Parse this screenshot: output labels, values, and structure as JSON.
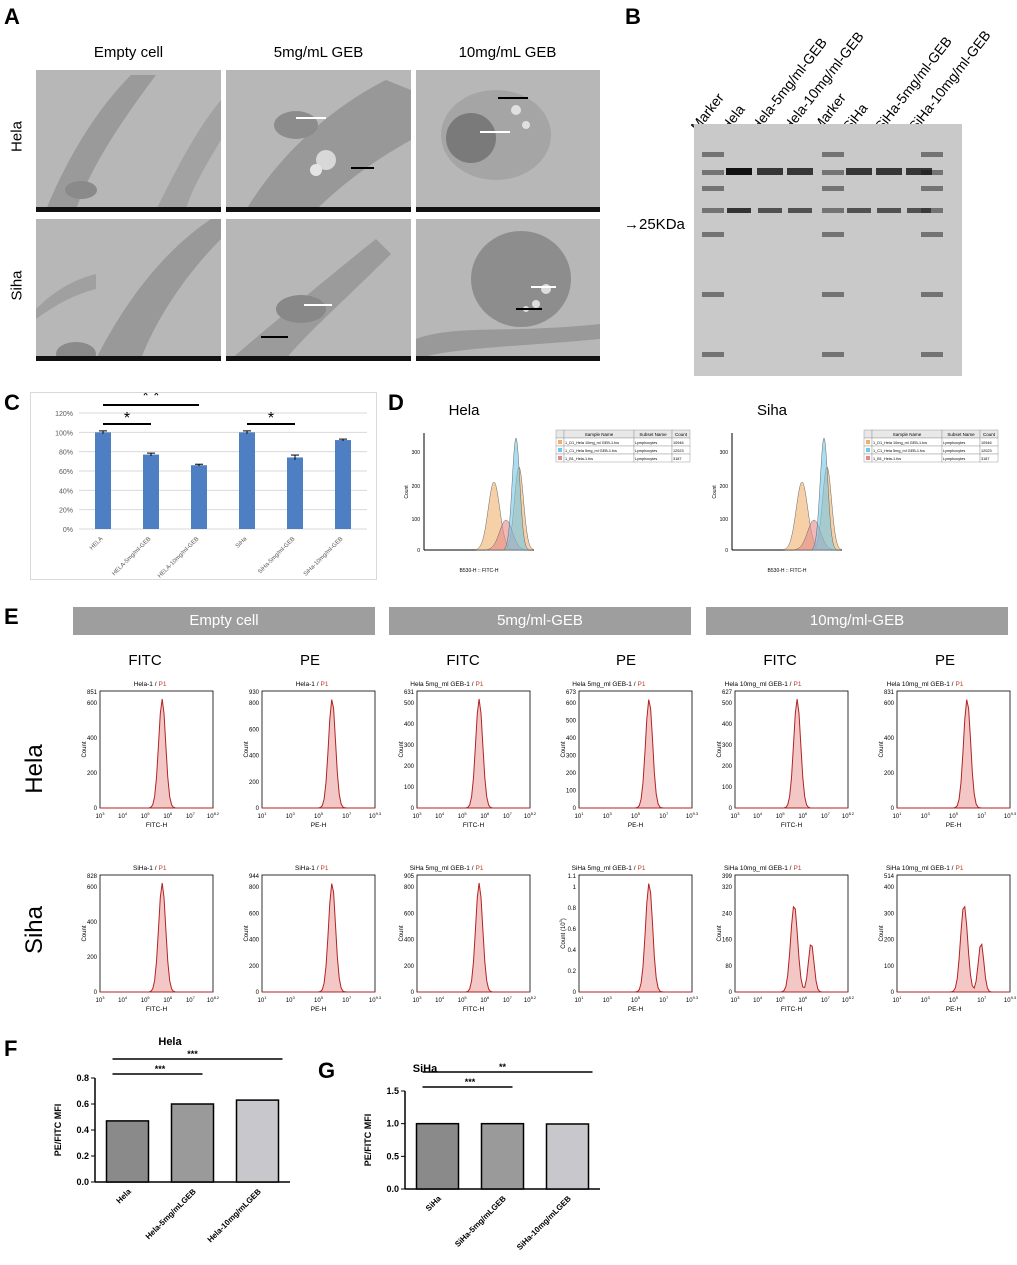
{
  "panel_letters": {
    "a": "A",
    "b": "B",
    "c": "C",
    "d": "D",
    "e": "E",
    "f": "F",
    "g": "G"
  },
  "panelA": {
    "columns": [
      "Empty cell",
      "5mg/mL GEB",
      "10mg/mL GEB"
    ],
    "rows": [
      "Hela",
      "Siha"
    ]
  },
  "panelB": {
    "lanes": [
      "Marker",
      "Hela",
      "Hela-5mg/ml-GEB",
      "Hela-10mg/ml-GEB",
      "Marker",
      "SiHa",
      "SiHa-5mg/ml-GEB",
      "SiHa-10mg/ml-GEB"
    ],
    "arrow_label": "→25KDa"
  },
  "panelD": {
    "titles": [
      "Hela",
      "Siha"
    ],
    "xlabel": "B530-H :: FITC-H",
    "ylabel": "Count",
    "legend_headers": [
      "",
      "Sample Name",
      "Subset Name",
      "Count"
    ],
    "legend_rows": [
      {
        "name": "1_D1_Hela 10mg_ml GEB-1.fcs",
        "subset": "Lymphocytes",
        "count": "10946",
        "color": "#f0b06a"
      },
      {
        "name": "1_C1_Hela 5mg_ml GEB-1.fcs",
        "subset": "Lymphocytes",
        "count": "12023",
        "color": "#73c6e8"
      },
      {
        "name": "1_B1_Hela-1.fcs",
        "subset": "Lymphocytes",
        "count": "3187",
        "color": "#e58a8a"
      }
    ]
  },
  "panelE": {
    "groups": [
      "Empty cell",
      "5mg/ml-GEB",
      "10mg/ml-GEB"
    ],
    "channels": [
      "FITC",
      "PE"
    ],
    "rows": [
      "Hela",
      "Siha"
    ],
    "gate": "P1",
    "ylabel": "Count",
    "ylabel_scaled": "Count (10",
    "ylabel_exp": "3",
    "fitc_xlabel": "FITC-H",
    "pe_xlabel": "PE-H",
    "plots": [
      {
        "title": "Hela-1",
        "ymax": "851",
        "yticks": [
          "600",
          "400",
          "200",
          "0"
        ],
        "channel": "FITC"
      },
      {
        "title": "Hela-1",
        "ymax": "930",
        "yticks": [
          "800",
          "600",
          "400",
          "200",
          "0"
        ],
        "channel": "PE"
      },
      {
        "title": "Hela 5mg_ml GEB-1",
        "ymax": "631",
        "yticks": [
          "500",
          "400",
          "300",
          "200",
          "100",
          "0"
        ],
        "channel": "FITC"
      },
      {
        "title": "Hela 5mg_ml GEB-1",
        "ymax": "673",
        "yticks": [
          "600",
          "500",
          "400",
          "300",
          "200",
          "100",
          "0"
        ],
        "channel": "PE"
      },
      {
        "title": "Hela 10mg_ml GEB-1",
        "ymax": "627",
        "yticks": [
          "500",
          "400",
          "300",
          "200",
          "100",
          "0"
        ],
        "channel": "FITC"
      },
      {
        "title": "Hela 10mg_ml GEB-1",
        "ymax": "831",
        "yticks": [
          "600",
          "400",
          "200",
          "0"
        ],
        "channel": "PE"
      },
      {
        "title": "SiHa-1",
        "ymax": "828",
        "yticks": [
          "600",
          "400",
          "200",
          "0"
        ],
        "channel": "FITC"
      },
      {
        "title": "SiHa-1",
        "ymax": "944",
        "yticks": [
          "800",
          "600",
          "400",
          "200",
          "0"
        ],
        "channel": "PE"
      },
      {
        "title": "SiHa 5mg_ml GEB-1",
        "ymax": "905",
        "yticks": [
          "800",
          "600",
          "400",
          "200",
          "0"
        ],
        "channel": "FITC"
      },
      {
        "title": "SiHa 5mg_ml GEB-1",
        "ymax": "1.1",
        "yticks": [
          "1",
          "0.8",
          "0.6",
          "0.4",
          "0.2",
          "0"
        ],
        "channel": "PE"
      },
      {
        "title": "SiHa 10mg_ml GEB-1",
        "ymax": "399",
        "yticks": [
          "320",
          "240",
          "160",
          "80",
          "0"
        ],
        "channel": "FITC"
      },
      {
        "title": "SiHa 10mg_ml GEB-1",
        "ymax": "514",
        "yticks": [
          "400",
          "300",
          "200",
          "100",
          "0"
        ],
        "channel": "PE"
      }
    ],
    "xticks_fitc": [
      "10",
      "3",
      "10",
      "4",
      "10",
      "5",
      "10",
      "6",
      "10",
      "7",
      "10",
      "8.2"
    ],
    "xticks_pe": [
      "10",
      "1",
      "10",
      "3",
      "10",
      "5",
      "10",
      "7",
      "10",
      "9.3"
    ]
  },
  "chart_data": [
    {
      "panel": "C",
      "type": "bar",
      "categories": [
        "HELA",
        "HELA-5mg/ml-GEB",
        "HELA-10mg/ml-GEB",
        "SiHa",
        "SiHa-5mg/ml-GEB",
        "SiHa-10mg/ml-GEB"
      ],
      "values": [
        100,
        77,
        66,
        100,
        74,
        92
      ],
      "errors": [
        1.5,
        1.5,
        1,
        1.5,
        2.5,
        1
      ],
      "ylim": [
        0,
        120
      ],
      "yticks": [
        "0%",
        "20%",
        "40%",
        "60%",
        "80%",
        "100%",
        "120%"
      ],
      "color": "#4f7fc3",
      "significance": [
        "*",
        "* *",
        "*"
      ]
    },
    {
      "panel": "F",
      "type": "bar",
      "title": "Hela",
      "ylabel": "PE/FITC MFI",
      "categories": [
        "Hela",
        "Hela-5mg/mLGEB",
        "Hela-10mg/mLGEB"
      ],
      "values": [
        0.47,
        0.6,
        0.63
      ],
      "ylim": [
        0,
        0.8
      ],
      "yticks": [
        "0.0",
        "0.2",
        "0.4",
        "0.6",
        "0.8"
      ],
      "significance": [
        "***",
        "***"
      ]
    },
    {
      "panel": "G",
      "type": "bar",
      "title": "SiHa",
      "ylabel": "PE/FITC MFI",
      "categories": [
        "SiHa",
        "SiHa-5mg/mLGEB",
        "SiHa-10mg/mLGEB"
      ],
      "values": [
        1.0,
        1.0,
        0.995
      ],
      "ylim": [
        0,
        1.5
      ],
      "yticks": [
        "0.0",
        "0.5",
        "1.0",
        "1.5"
      ],
      "significance": [
        "***",
        "**"
      ]
    }
  ]
}
